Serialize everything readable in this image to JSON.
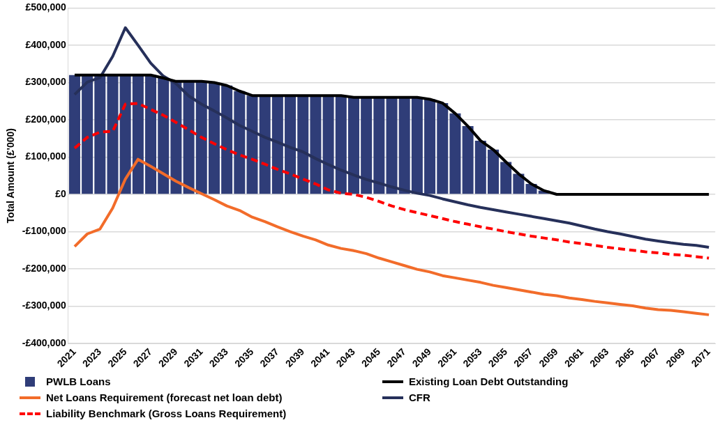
{
  "chart_data": {
    "type": "bar",
    "ylabel": "Total Amount (£'000)",
    "categories": [
      "2021",
      null,
      "2023",
      null,
      "2025",
      null,
      "2027",
      null,
      "2029",
      null,
      "2031",
      null,
      "2033",
      null,
      "2035",
      null,
      "2037",
      null,
      "2039",
      null,
      "2041",
      null,
      "2043",
      null,
      "2045",
      null,
      "2047",
      null,
      "2049",
      null,
      "2051",
      null,
      "2053",
      null,
      "2055",
      null,
      "2057",
      null,
      "2059",
      null,
      "2061",
      null,
      "2063",
      null,
      "2065",
      null,
      "2067",
      null,
      "2069",
      null,
      "2071"
    ],
    "series": [
      {
        "name": "PWLB Loans",
        "color": "#2f3d78",
        "values": [
          320000,
          320000,
          320000,
          320000,
          320000,
          320000,
          320000,
          312000,
          303000,
          303000,
          303000,
          300000,
          292000,
          277000,
          265000,
          265000,
          265000,
          265000,
          265000,
          265000,
          265000,
          265000,
          260000,
          260000,
          260000,
          260000,
          260000,
          260000,
          255000,
          245000,
          217000,
          183000,
          144000,
          120000,
          87000,
          55000,
          28000,
          10000,
          0,
          0,
          0,
          0,
          0,
          0,
          0,
          0,
          0,
          0,
          0,
          0,
          0
        ]
      },
      {
        "name": "Existing Loan Debt Outstanding",
        "type": "line",
        "color": "#000000",
        "line_style": "solid",
        "values": [
          320000,
          320000,
          320000,
          320000,
          320000,
          320000,
          320000,
          312000,
          303000,
          303000,
          303000,
          300000,
          292000,
          277000,
          265000,
          265000,
          265000,
          265000,
          265000,
          265000,
          265000,
          265000,
          260000,
          260000,
          260000,
          260000,
          260000,
          260000,
          255000,
          245000,
          217000,
          183000,
          144000,
          120000,
          87000,
          55000,
          28000,
          10000,
          0,
          0,
          0,
          0,
          0,
          0,
          0,
          0,
          0,
          0,
          0,
          0,
          0
        ]
      },
      {
        "name": "Net Loans Requirement (forecast net loan debt)",
        "type": "line",
        "color": "#f26c2a",
        "line_style": "solid",
        "values": [
          -140000,
          -106000,
          -93000,
          -37000,
          41000,
          94000,
          75000,
          55000,
          35000,
          18000,
          2000,
          -14000,
          -31000,
          -43000,
          -61000,
          -73000,
          -87000,
          -100000,
          -112000,
          -122000,
          -136000,
          -145000,
          -151000,
          -159000,
          -171000,
          -181000,
          -191000,
          -201000,
          -208000,
          -218000,
          -224000,
          -230000,
          -236000,
          -244000,
          -250000,
          -256000,
          -262000,
          -268000,
          -272000,
          -278000,
          -282000,
          -287000,
          -291000,
          -295000,
          -299000,
          -305000,
          -309000,
          -311000,
          -315000,
          -319000,
          -323000
        ]
      },
      {
        "name": "CFR",
        "type": "line",
        "color": "#26305a",
        "line_style": "solid",
        "values": [
          268000,
          301000,
          313000,
          370000,
          447000,
          400000,
          352000,
          317000,
          297000,
          264000,
          242000,
          224000,
          205000,
          185000,
          169000,
          153000,
          140000,
          126000,
          114000,
          96000,
          80000,
          65000,
          52000,
          40000,
          30000,
          20000,
          11000,
          3000,
          -3000,
          -12000,
          -20000,
          -28000,
          -35000,
          -41000,
          -47000,
          -53000,
          -59000,
          -65000,
          -71000,
          -77000,
          -85000,
          -93000,
          -100000,
          -106000,
          -113000,
          -120000,
          -125000,
          -130000,
          -134000,
          -137000,
          -142000
        ]
      },
      {
        "name": "Liability Benchmark (Gross Loans Requirement)",
        "type": "line",
        "color": "#ff0000",
        "line_style": "dashed",
        "values": [
          124000,
          153000,
          167000,
          169000,
          242000,
          244000,
          228000,
          212000,
          193000,
          173000,
          153000,
          136000,
          120000,
          106000,
          94000,
          81000,
          67000,
          55000,
          41000,
          28000,
          12000,
          3000,
          0,
          -8000,
          -19000,
          -31000,
          -41000,
          -49000,
          -57000,
          -65000,
          -73000,
          -80000,
          -87000,
          -93000,
          -100000,
          -106000,
          -112000,
          -117000,
          -122000,
          -128000,
          -132000,
          -137000,
          -142000,
          -146000,
          -150000,
          -154000,
          -157000,
          -161000,
          -163000,
          -167000,
          -171000
        ]
      }
    ],
    "ylim": [
      -400000,
      500000
    ],
    "yticks": [
      {
        "value": -400000,
        "label": "-£400,000"
      },
      {
        "value": -300000,
        "label": "-£300,000"
      },
      {
        "value": -200000,
        "label": "-£200,000"
      },
      {
        "value": -100000,
        "label": "-£100,000"
      },
      {
        "value": 0,
        "label": "£0"
      },
      {
        "value": 100000,
        "label": "£100,000"
      },
      {
        "value": 200000,
        "label": "£200,000"
      },
      {
        "value": 300000,
        "label": "£300,000"
      },
      {
        "value": 400000,
        "label": "£400,000"
      },
      {
        "value": 500000,
        "label": "£500,000"
      }
    ],
    "grid": "y",
    "legend": "bottom",
    "marker": "none"
  }
}
